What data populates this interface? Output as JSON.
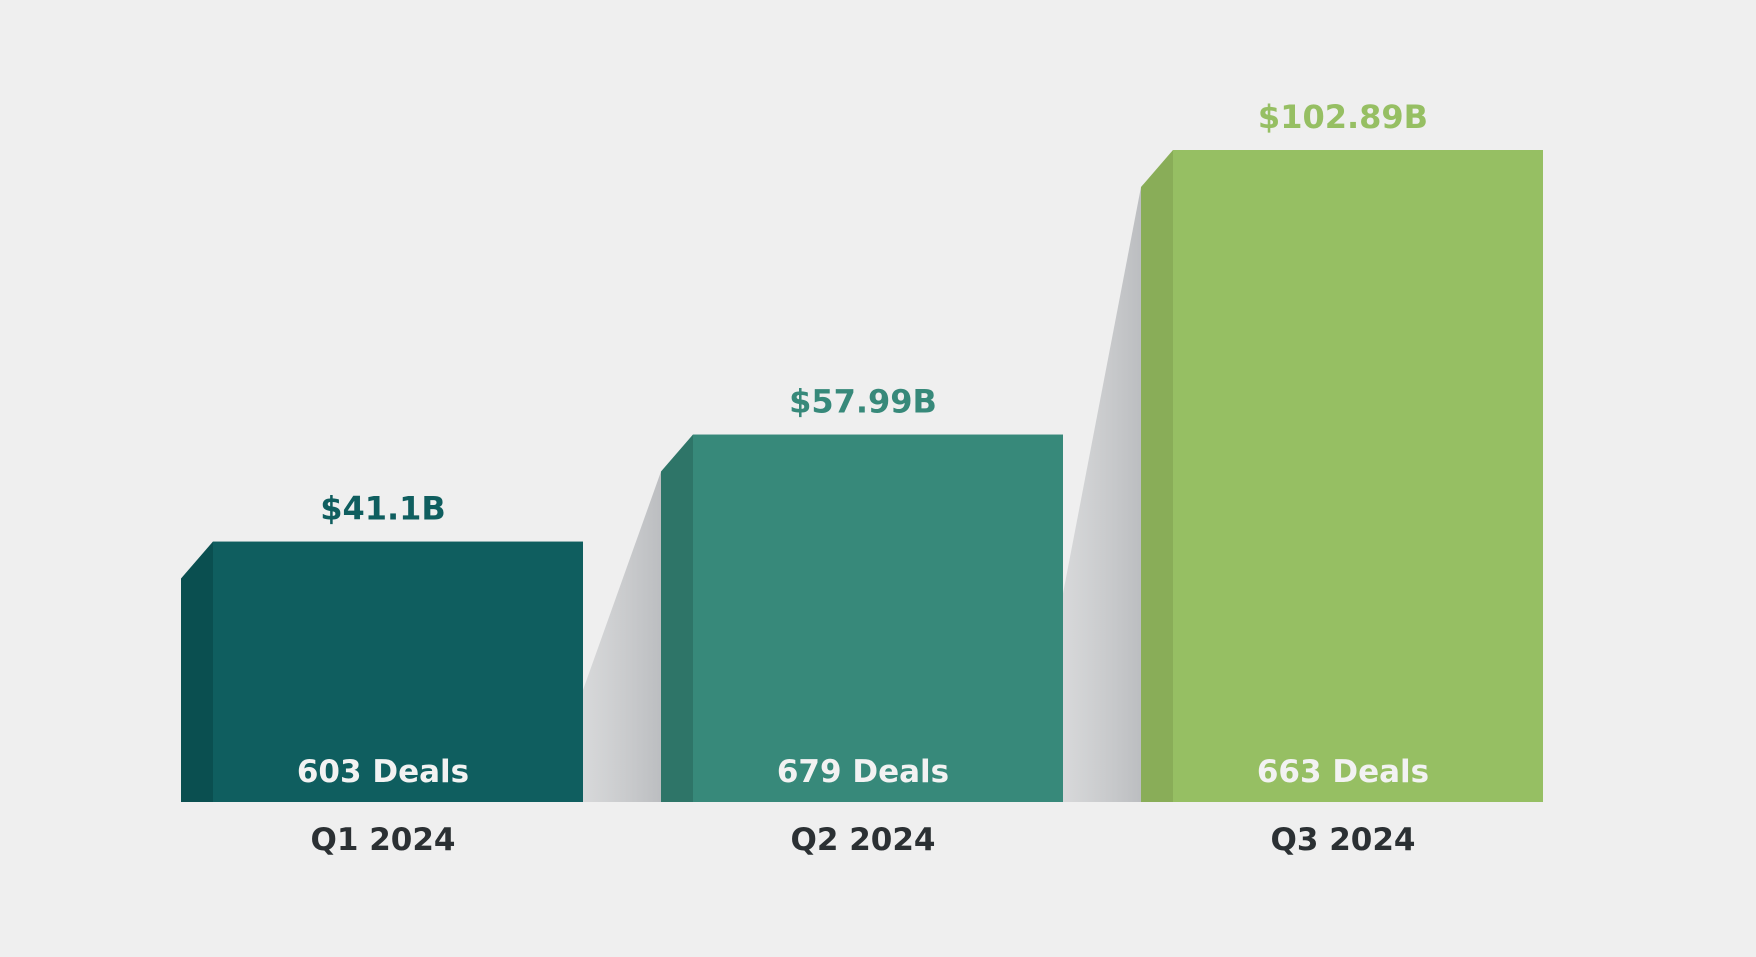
{
  "chart_data": {
    "type": "bar",
    "title": "",
    "xlabel": "",
    "ylabel": "",
    "ylim": [
      0,
      102.89
    ],
    "categories": [
      "Q1 2024",
      "Q2 2024",
      "Q3 2024"
    ],
    "values": [
      41.1,
      57.99,
      102.89
    ],
    "value_labels": [
      "$41.1B",
      "$57.99B",
      "$102.89B"
    ],
    "deal_counts": [
      603,
      679,
      663
    ],
    "deal_labels": [
      "603 Deals",
      "679 Deals",
      "663 Deals"
    ],
    "colors": [
      "#0f5e5f",
      "#37897a",
      "#96bf63"
    ],
    "side_colors": [
      "#0a4f50",
      "#2e7568",
      "#89ad58"
    ],
    "value_label_colors": [
      "#0f5e5f",
      "#37897a",
      "#96bf63"
    ],
    "category_label_color": "#2b3033",
    "deal_label_color": "#f2f2f2",
    "grid": false,
    "legend": "none"
  }
}
